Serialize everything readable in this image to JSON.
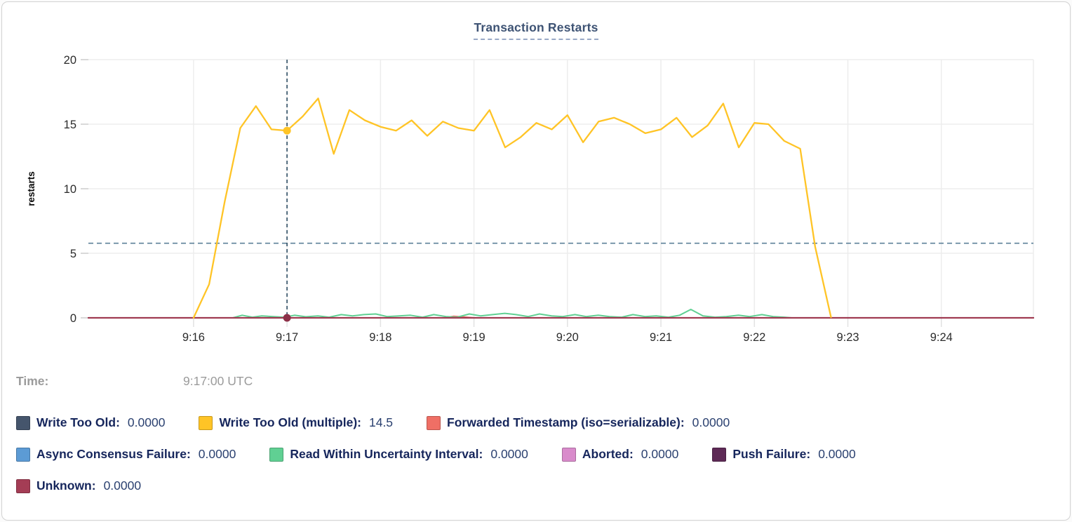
{
  "header": {
    "title": "Transaction Restarts"
  },
  "hover_readout": {
    "label": "Time:",
    "value": "9:17:00 UTC"
  },
  "legend": {
    "rows": [
      [
        {
          "name": "Write Too Old",
          "value": "0.0000",
          "color": "#45556c"
        },
        {
          "name": "Write Too Old (multiple)",
          "value": "14.5",
          "color": "#ffc426"
        },
        {
          "name": "Forwarded Timestamp (iso=serializable)",
          "value": "0.0000",
          "color": "#ef6f65"
        }
      ],
      [
        {
          "name": "Async Consensus Failure",
          "value": "0.0000",
          "color": "#5c9bd5"
        },
        {
          "name": "Read Within Uncertainty Interval",
          "value": "0.0000",
          "color": "#60d093"
        },
        {
          "name": "Aborted",
          "value": "0.0000",
          "color": "#d98bcb"
        },
        {
          "name": "Push Failure",
          "value": "0.0000",
          "color": "#5e2a56"
        }
      ],
      [
        {
          "name": "Unknown",
          "value": "0.0000",
          "color": "#a43d55"
        }
      ]
    ]
  },
  "chart_data": {
    "type": "line",
    "title": "Transaction Restarts",
    "xlabel": "",
    "ylabel": "restarts",
    "ylim": [
      0,
      20
    ],
    "y_ticks": [
      0,
      5,
      10,
      15,
      20
    ],
    "x_domain_minutes": [
      -1.125,
      8.985
    ],
    "x_ticks": [
      {
        "label": "9:16",
        "m": 0
      },
      {
        "label": "9:17",
        "m": 1
      },
      {
        "label": "9:18",
        "m": 2
      },
      {
        "label": "9:19",
        "m": 3
      },
      {
        "label": "9:20",
        "m": 4
      },
      {
        "label": "9:21",
        "m": 5
      },
      {
        "label": "9:22",
        "m": 6
      },
      {
        "label": "9:23",
        "m": 7
      },
      {
        "label": "9:24",
        "m": 8
      }
    ],
    "grid": true,
    "threshold_line_value": 5.78,
    "hover": {
      "m": 1,
      "time": "9:17:00 UTC",
      "dots": [
        {
          "series": "Write Too Old (multiple)",
          "value": 14.5
        },
        {
          "series": "Unknown",
          "value": 0
        }
      ]
    },
    "series": [
      {
        "name": "Write Too Old",
        "color": "#45556c",
        "width": 2,
        "points": [
          [
            -1.125,
            0
          ],
          [
            8.985,
            0
          ]
        ]
      },
      {
        "name": "Async Consensus Failure",
        "color": "#5c9bd5",
        "width": 2,
        "points": [
          [
            -1.125,
            0
          ],
          [
            8.985,
            0
          ]
        ]
      },
      {
        "name": "Aborted",
        "color": "#d98bcb",
        "width": 2,
        "points": [
          [
            -1.125,
            0
          ],
          [
            8.985,
            0
          ]
        ]
      },
      {
        "name": "Push Failure",
        "color": "#5e2a56",
        "width": 2,
        "points": [
          [
            -1.125,
            0
          ],
          [
            8.985,
            0
          ]
        ]
      },
      {
        "name": "Forwarded Timestamp (iso=serializable)",
        "color": "#ef6f65",
        "width": 2,
        "points": [
          [
            -1.125,
            0
          ],
          [
            2.68,
            0
          ],
          [
            2.78,
            0.12
          ],
          [
            2.9,
            0.06
          ],
          [
            3.0,
            0
          ],
          [
            8.985,
            0
          ]
        ]
      },
      {
        "name": "Read Within Uncertainty Interval",
        "color": "#60d093",
        "width": 2,
        "points": [
          [
            0.42,
            0
          ],
          [
            0.52,
            0.2
          ],
          [
            0.63,
            0.05
          ],
          [
            0.73,
            0.15
          ],
          [
            0.85,
            0.1
          ],
          [
            0.97,
            0.05
          ],
          [
            1.08,
            0.2
          ],
          [
            1.2,
            0.08
          ],
          [
            1.33,
            0.15
          ],
          [
            1.45,
            0.05
          ],
          [
            1.58,
            0.25
          ],
          [
            1.7,
            0.15
          ],
          [
            1.82,
            0.25
          ],
          [
            1.95,
            0.3
          ],
          [
            2.07,
            0.1
          ],
          [
            2.2,
            0.15
          ],
          [
            2.32,
            0.2
          ],
          [
            2.45,
            0.05
          ],
          [
            2.57,
            0.25
          ],
          [
            2.7,
            0.1
          ],
          [
            2.82,
            0.05
          ],
          [
            2.95,
            0.3
          ],
          [
            3.07,
            0.15
          ],
          [
            3.2,
            0.25
          ],
          [
            3.33,
            0.35
          ],
          [
            3.45,
            0.25
          ],
          [
            3.58,
            0.1
          ],
          [
            3.7,
            0.3
          ],
          [
            3.83,
            0.15
          ],
          [
            3.95,
            0.1
          ],
          [
            4.08,
            0.25
          ],
          [
            4.2,
            0.1
          ],
          [
            4.33,
            0.2
          ],
          [
            4.45,
            0.1
          ],
          [
            4.58,
            0.05
          ],
          [
            4.7,
            0.25
          ],
          [
            4.83,
            0.1
          ],
          [
            4.95,
            0.15
          ],
          [
            5.08,
            0.05
          ],
          [
            5.2,
            0.2
          ],
          [
            5.32,
            0.65
          ],
          [
            5.45,
            0.15
          ],
          [
            5.58,
            0.05
          ],
          [
            5.7,
            0.1
          ],
          [
            5.83,
            0.2
          ],
          [
            5.95,
            0.1
          ],
          [
            6.08,
            0.25
          ],
          [
            6.2,
            0.1
          ],
          [
            6.32,
            0.05
          ],
          [
            6.4,
            0
          ]
        ]
      },
      {
        "name": "Unknown",
        "color": "#a03b52",
        "width": 2.2,
        "points": [
          [
            -1.125,
            0
          ],
          [
            8.985,
            0
          ]
        ]
      },
      {
        "name": "Write Too Old (multiple)",
        "color": "#ffc426",
        "width": 2.3,
        "points": [
          [
            0,
            0
          ],
          [
            0.167,
            2.6
          ],
          [
            0.333,
            9.0
          ],
          [
            0.5,
            14.7
          ],
          [
            0.667,
            16.4
          ],
          [
            0.833,
            14.6
          ],
          [
            1,
            14.5
          ],
          [
            1.167,
            15.6
          ],
          [
            1.333,
            17.0
          ],
          [
            1.5,
            12.7
          ],
          [
            1.667,
            16.1
          ],
          [
            1.833,
            15.3
          ],
          [
            2,
            14.8
          ],
          [
            2.167,
            14.5
          ],
          [
            2.333,
            15.3
          ],
          [
            2.5,
            14.1
          ],
          [
            2.667,
            15.2
          ],
          [
            2.833,
            14.7
          ],
          [
            3,
            14.5
          ],
          [
            3.167,
            16.1
          ],
          [
            3.333,
            13.2
          ],
          [
            3.5,
            14.0
          ],
          [
            3.667,
            15.1
          ],
          [
            3.833,
            14.6
          ],
          [
            4,
            15.7
          ],
          [
            4.167,
            13.6
          ],
          [
            4.333,
            15.2
          ],
          [
            4.5,
            15.5
          ],
          [
            4.667,
            15.0
          ],
          [
            4.833,
            14.3
          ],
          [
            5,
            14.6
          ],
          [
            5.167,
            15.5
          ],
          [
            5.333,
            14.0
          ],
          [
            5.5,
            14.9
          ],
          [
            5.667,
            16.6
          ],
          [
            5.833,
            13.2
          ],
          [
            6,
            15.1
          ],
          [
            6.15,
            15.0
          ],
          [
            6.32,
            13.7
          ],
          [
            6.49,
            13.1
          ],
          [
            6.65,
            5.5
          ],
          [
            6.82,
            0.05
          ]
        ]
      }
    ],
    "legend_position": "bottom",
    "colors": {
      "grid": "#ededed",
      "axis_text": "#2b2b2b",
      "crosshair": "#2e4d63",
      "threshold": "#5d8099",
      "hover_dot_unknown": "#8d3048"
    }
  }
}
